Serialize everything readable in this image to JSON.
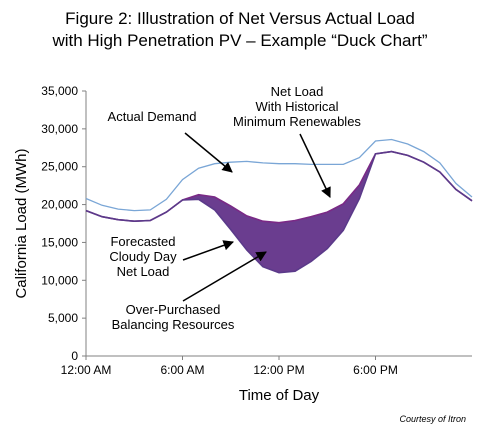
{
  "title_line1": "Figure 2: Illustration of Net Versus Actual Load",
  "title_line2": "with High Penetration PV – Example “Duck Chart”",
  "credit": "Courtesy of Itron",
  "chart_data": {
    "type": "line",
    "title": "Figure 2: Illustration of Net Versus Actual Load with High Penetration PV – Example “Duck Chart”",
    "xlabel": "Time of Day",
    "ylabel": "California Load (MWh)",
    "ylim": [
      0,
      35000
    ],
    "xlim": [
      0,
      24
    ],
    "yticks": [
      "0",
      "5,000",
      "10,000",
      "15,000",
      "20,000",
      "25,000",
      "30,000",
      "35,000"
    ],
    "ytick_values": [
      0,
      5000,
      10000,
      15000,
      20000,
      25000,
      30000,
      35000
    ],
    "xticks": [
      "12:00 AM",
      "6:00 AM",
      "12:00 PM",
      "6:00 PM"
    ],
    "xtick_values": [
      0,
      6,
      12,
      18
    ],
    "grid": false,
    "x": [
      0,
      1,
      2,
      3,
      4,
      5,
      6,
      7,
      8,
      9,
      10,
      11,
      12,
      13,
      14,
      15,
      16,
      17,
      18,
      19,
      20,
      21,
      22,
      23,
      24
    ],
    "series": [
      {
        "name": "Actual Demand",
        "color": "#7aa6d6",
        "values": [
          20800,
          19900,
          19400,
          19200,
          19300,
          20700,
          23300,
          24800,
          25400,
          25600,
          25700,
          25500,
          25400,
          25400,
          25300,
          25300,
          25300,
          26200,
          28400,
          28600,
          28000,
          27000,
          25500,
          22800,
          21000
        ]
      },
      {
        "name": "Net Load With Historical Minimum Renewables",
        "color": "#7a2a86",
        "values": [
          19200,
          18400,
          18000,
          17800,
          17900,
          19000,
          20600,
          21300,
          21000,
          19800,
          18500,
          17800,
          17600,
          17900,
          18400,
          19000,
          20100,
          22600,
          26700,
          27000,
          26500,
          25600,
          24300,
          22000,
          20500
        ]
      },
      {
        "name": "Forecasted Cloudy Day Net Load",
        "color": "#5b3a8a",
        "values": [
          19200,
          18400,
          18000,
          17800,
          17900,
          19000,
          20600,
          20700,
          19300,
          16700,
          14000,
          11800,
          11000,
          11200,
          12500,
          14200,
          16600,
          20800,
          26700,
          27000,
          26500,
          25600,
          24300,
          22000,
          20500
        ]
      }
    ],
    "fill": {
      "between": [
        "Net Load With Historical Minimum Renewables",
        "Forecasted Cloudy Day Net Load"
      ],
      "color": "#6a3d8f"
    },
    "annotations": [
      {
        "text": [
          "Actual Demand"
        ]
      },
      {
        "text": [
          "Net Load",
          "With Historical",
          "Minimum Renewables"
        ]
      },
      {
        "text": [
          "Forecasted",
          "Cloudy Day",
          "Net Load"
        ]
      },
      {
        "text": [
          "Over-Purchased",
          "Balancing Resources"
        ]
      }
    ]
  }
}
